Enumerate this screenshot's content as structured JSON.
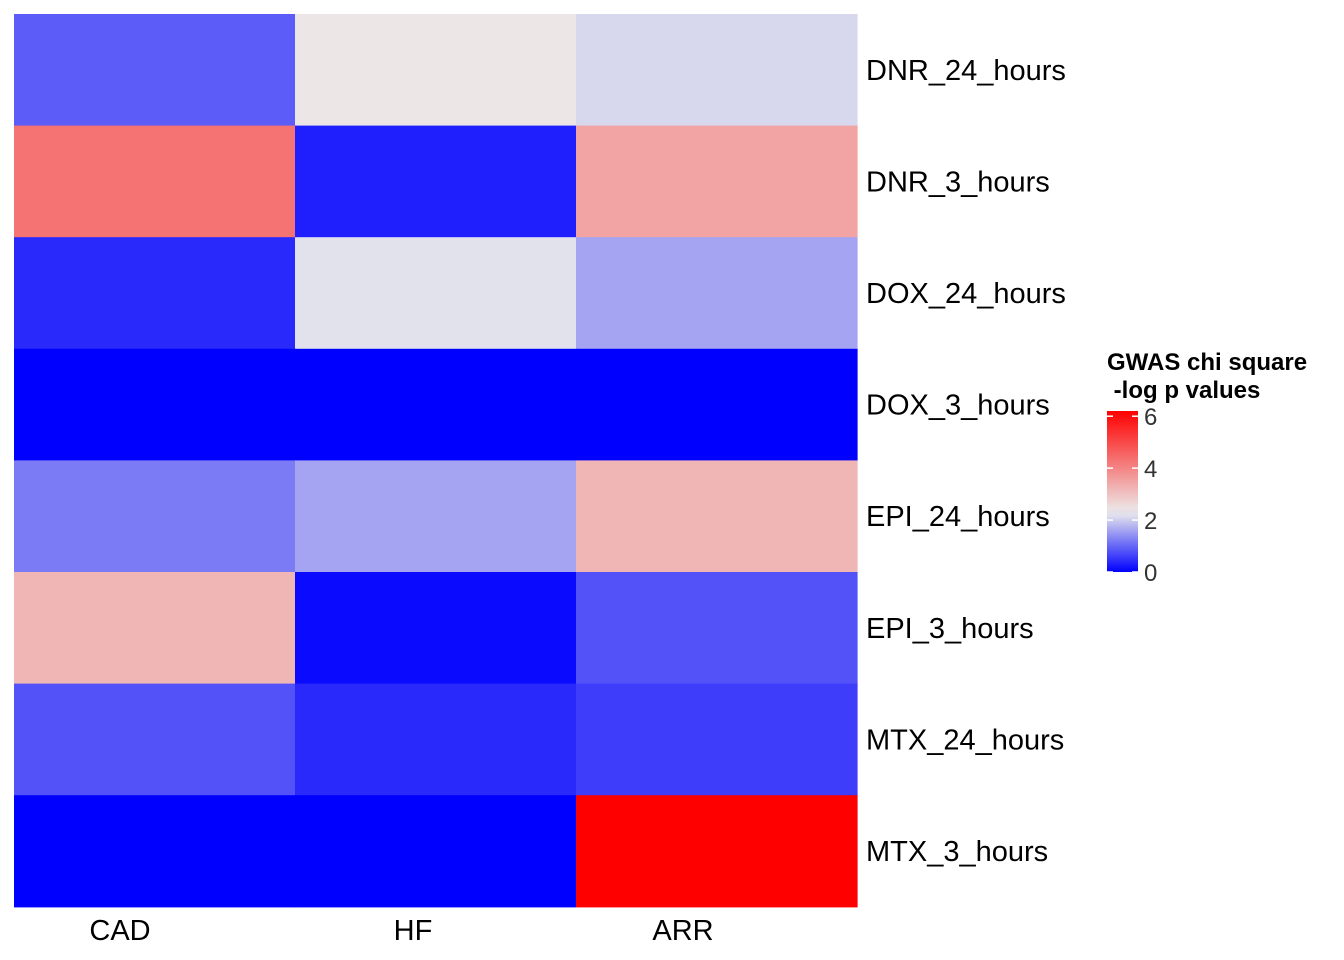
{
  "chart_data": {
    "type": "heatmap",
    "title": "",
    "xlabel": "",
    "ylabel": "",
    "columns": [
      "CAD",
      "HF",
      "ARR"
    ],
    "rows": [
      "DNR_24_hours",
      "DNR_3_hours",
      "DOX_24_hours",
      "DOX_3_hours",
      "EPI_24_hours",
      "EPI_3_hours",
      "MTX_24_hours",
      "MTX_3_hours"
    ],
    "values": [
      [
        0.9,
        2.4,
        2.1
      ],
      [
        4.3,
        0.3,
        3.5
      ],
      [
        0.4,
        2.2,
        1.6
      ],
      [
        0.0,
        0.0,
        0.0
      ],
      [
        1.2,
        1.6,
        3.2
      ],
      [
        3.2,
        0.1,
        0.8
      ],
      [
        0.8,
        0.4,
        0.6
      ],
      [
        0.0,
        0.0,
        6.2
      ]
    ],
    "legend": {
      "title_lines": [
        "GWAS chi square",
        " -log p values"
      ],
      "ticks": [
        0,
        2,
        4,
        6
      ],
      "tick_labels": [
        "0",
        "2",
        "4",
        "6"
      ],
      "range": [
        0,
        6.2
      ],
      "placement": "right"
    },
    "colors": {
      "low": "#0000ff",
      "mid": "#ececec",
      "high": "#ff0000",
      "midpoint": 2.3
    }
  }
}
